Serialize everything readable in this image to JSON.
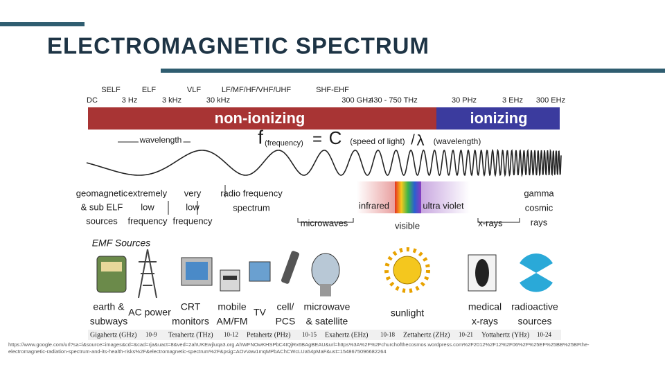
{
  "header": {
    "title": "ELECTROMAGNETIC SPECTRUM"
  },
  "diagram": {
    "top_labels": [
      "DC",
      "SELF",
      "3 Hz",
      "ELF",
      "3 kHz",
      "VLF",
      "30 kHz",
      "LF/MF/HF/VHF/UHF",
      "SHF-EHF",
      "300 GHz",
      "430 - 750 THz",
      "30 PHz",
      "3 EHz",
      "300 EHz"
    ],
    "bands": [
      "non-ionizing",
      "ionizing"
    ],
    "formula": [
      "f",
      "(frequency)",
      "=",
      "C",
      "(speed of light)",
      "/",
      "λ",
      "(wavelength)"
    ],
    "wavelength": "wavelength",
    "categories": [
      [
        "geomagnetic",
        "& sub ELF",
        "sources"
      ],
      [
        "extremely",
        "low",
        "frequency"
      ],
      [
        "very",
        "low",
        "frequency"
      ],
      [
        "radio frequency",
        "spectrum"
      ],
      [
        "microwaves"
      ],
      [
        "infrared"
      ],
      [
        "visible"
      ],
      [
        "ultra violet"
      ],
      [
        "x-rays"
      ],
      [
        "gamma",
        "cosmic",
        "rays"
      ]
    ],
    "sources_title": "EMF Sources",
    "sources": [
      [
        "earth &",
        "subways"
      ],
      [
        "AC power"
      ],
      [
        "CRT",
        "monitors"
      ],
      [
        "mobile",
        "AM/FM"
      ],
      [
        "TV"
      ],
      [
        "cell/",
        "PCS"
      ],
      [
        "microwave",
        "& satellite"
      ],
      [
        "sunlight"
      ],
      [
        "medical",
        "x-rays"
      ],
      [
        "radioactive",
        "sources"
      ]
    ],
    "scale": [
      {
        "unit": "Gigahertz (GHz)",
        "power": "10-9"
      },
      {
        "unit": "Terahertz (THz)",
        "power": "10-12"
      },
      {
        "unit": "Petahertz (PHz)",
        "power": "10-15"
      },
      {
        "unit": "Exahertz (EHz)",
        "power": "10-18"
      },
      {
        "unit": "Zettahertz (ZHz)",
        "power": "10-21"
      },
      {
        "unit": "Yottahertz (YHz)",
        "power": "10-24"
      }
    ]
  },
  "footer": {
    "source": [
      "https://www.google.com/url?sa=i&source=images&cd=&cad=rja&uact=8&ved=2ahUKEwjluqa3.org.AhWFNOwKHSPbC4IQjRx6BAgBEAU&url=https%3A%2F%2Fchurchofthecosmos.wordpress.com%2F2012%2F12%2F06%2F%25EF%25BB%25BFthe-",
      "electromagnetic-radiation-spectrum-and-its-health-risks%2F&electromagnetic-spectrum%2F&psig=AOvVaw1mqMPbAChCWcLUa54pMaF&ust=1548675096682264"
    ]
  }
}
